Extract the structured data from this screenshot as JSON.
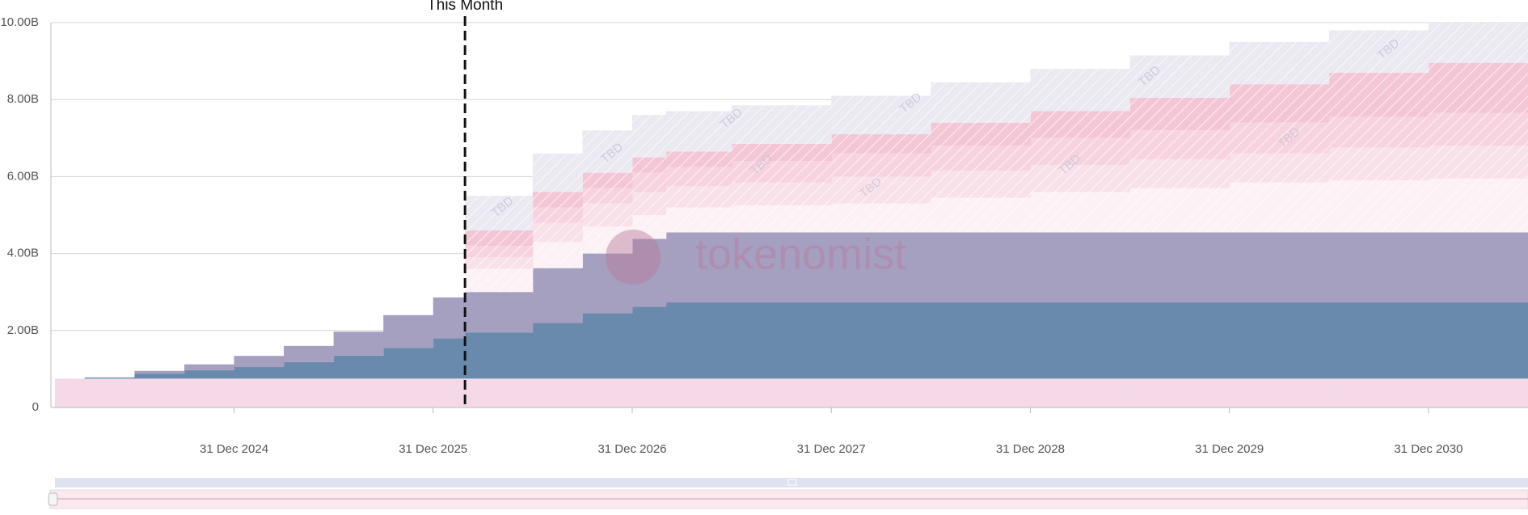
{
  "chart_data": {
    "type": "stacked_step_area",
    "x": [
      2024.1,
      2024.25,
      2024.5,
      2024.75,
      2025.0,
      2025.25,
      2025.5,
      2025.75,
      2026.0,
      2026.16,
      2026.5,
      2026.75,
      2027.0,
      2027.17,
      2027.5,
      2028.0,
      2028.5,
      2029.0,
      2029.5,
      2030.0,
      2030.5,
      2031.0
    ],
    "series": [
      {
        "color": "#f5d9e8",
        "values": [
          0.75,
          0.75,
          0.75,
          0.75,
          0.75,
          0.75,
          0.75,
          0.75,
          0.75,
          0.75,
          0.75,
          0.75,
          0.75,
          0.75,
          0.75,
          0.75,
          0.75,
          0.75,
          0.75,
          0.75,
          0.75,
          0.75
        ]
      },
      {
        "color": "#6a8aad",
        "values": [
          0,
          0.03,
          0.13,
          0.22,
          0.3,
          0.43,
          0.6,
          0.8,
          1.05,
          1.2,
          1.45,
          1.7,
          1.87,
          1.98,
          1.98,
          1.98,
          1.98,
          1.98,
          1.98,
          1.98,
          1.98,
          1.98
        ]
      },
      {
        "color": "#a59fc0",
        "values": [
          0,
          0,
          0.07,
          0.15,
          0.29,
          0.42,
          0.62,
          0.85,
          1.06,
          1.05,
          1.42,
          1.55,
          1.76,
          1.82,
          1.82,
          1.82,
          1.82,
          1.82,
          1.82,
          1.82,
          1.82,
          1.82
        ]
      },
      {
        "color": "#fcf1f5",
        "pattern": "hatch",
        "values": [
          null,
          null,
          null,
          null,
          null,
          null,
          null,
          null,
          null,
          0.6,
          0.68,
          0.7,
          0.62,
          0.65,
          0.7,
          0.75,
          0.9,
          1.05,
          1.15,
          1.3,
          1.35,
          1.4
        ]
      },
      {
        "color": "#f9e1e9",
        "pattern": "hatch",
        "values": [
          null,
          null,
          null,
          null,
          null,
          null,
          null,
          null,
          null,
          0.3,
          0.5,
          0.6,
          0.6,
          0.55,
          0.6,
          0.7,
          0.7,
          0.7,
          0.75,
          0.75,
          0.85,
          0.85
        ]
      },
      {
        "color": "#f7d3df",
        "pattern": "hatch",
        "values": [
          null,
          null,
          null,
          null,
          null,
          null,
          null,
          null,
          null,
          0.3,
          0.4,
          0.4,
          0.5,
          0.5,
          0.55,
          0.6,
          0.65,
          0.7,
          0.75,
          0.8,
          0.8,
          0.85
        ]
      },
      {
        "color": "#f4c6d5",
        "pattern": "hatch",
        "values": [
          null,
          null,
          null,
          null,
          null,
          null,
          null,
          null,
          null,
          0.4,
          0.4,
          0.4,
          0.4,
          0.4,
          0.45,
          0.5,
          0.6,
          0.7,
          0.85,
          1.0,
          1.15,
          1.3
        ]
      },
      {
        "color": "#ebe9f1",
        "pattern": "hatch",
        "values": [
          null,
          null,
          null,
          null,
          null,
          null,
          null,
          null,
          null,
          0.9,
          1.0,
          1.1,
          1.1,
          1.05,
          1.0,
          1.0,
          1.05,
          1.1,
          1.1,
          1.1,
          1.1,
          1.05
        ]
      }
    ],
    "xlim": [
      2024.08,
      2031.5
    ],
    "xticks": [
      {
        "value": 2025,
        "label": "31 Dec 2024"
      },
      {
        "value": 2026,
        "label": "31 Dec 2025"
      },
      {
        "value": 2027,
        "label": "31 Dec 2026"
      },
      {
        "value": 2028,
        "label": "31 Dec 2027"
      },
      {
        "value": 2029,
        "label": "31 Dec 2028"
      },
      {
        "value": 2030,
        "label": "31 Dec 2029"
      },
      {
        "value": 2031,
        "label": "31 Dec 2030"
      }
    ],
    "ylim": [
      0,
      10
    ],
    "yticks": [
      0,
      {
        "value": 2,
        "label": "2.00B"
      },
      {
        "value": 4,
        "label": "4.00B"
      },
      {
        "value": 6,
        "label": "6.00B"
      },
      {
        "value": 8,
        "label": "8.00B"
      },
      {
        "value": 10,
        "label": "10.00B"
      }
    ],
    "grid": true,
    "annotations": [
      {
        "x": 2026.16,
        "label": "This Month"
      }
    ],
    "tbd_label": "TBD",
    "watermark": "tokenomist"
  }
}
